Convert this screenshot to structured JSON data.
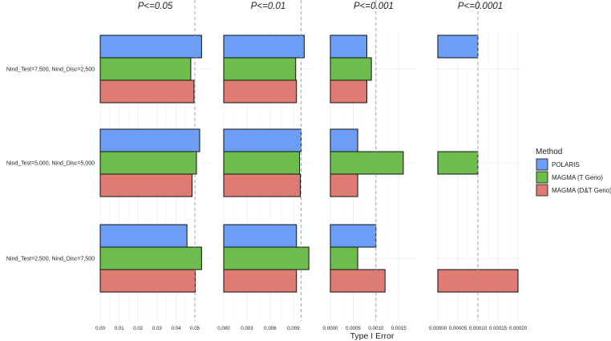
{
  "chart_data": {
    "type": "bar",
    "orientation": "horizontal",
    "xlabel": "Type I Error",
    "legend": {
      "title": "Method",
      "placement": "right",
      "entries": [
        {
          "name": "POLARIS",
          "color": "#6d9ef5"
        },
        {
          "name": "MAGMA (T Geno)",
          "color": "#6cbd4c"
        },
        {
          "name": "MAGMA (D&T Geno)",
          "color": "#e07b74"
        }
      ]
    },
    "rows": [
      "Nind_Test=7,500, Nind_Disc=2,500",
      "Nind_Test=5,000, Nind_Disc=5,000",
      "Nind_Test=2,500, Nind_Disc=7,500"
    ],
    "panels": [
      {
        "title": "P<=0.05",
        "threshold": 0.05,
        "xlim": [
          0,
          0.058
        ],
        "ticks": [
          0,
          0.01,
          0.02,
          0.03,
          0.04,
          0.05
        ],
        "tick_labels": [
          "0.00",
          "0.01",
          "0.02",
          "0.03",
          "0.04",
          "0.05"
        ],
        "series": [
          {
            "name": "POLARIS",
            "values": [
              0.0535,
              0.0525,
              0.0458
            ]
          },
          {
            "name": "MAGMA (T Geno)",
            "values": [
              0.0478,
              0.0508,
              0.0535
            ]
          },
          {
            "name": "MAGMA (D&T Geno)",
            "values": [
              0.0495,
              0.0485,
              0.0502
            ]
          }
        ]
      },
      {
        "title": "P<=0.01",
        "threshold": 0.01,
        "xlim": [
          0,
          0.0115
        ],
        "ticks": [
          0,
          0.003,
          0.006,
          0.009
        ],
        "tick_labels": [
          "0.000",
          "0.003",
          "0.006",
          "0.009"
        ],
        "series": [
          {
            "name": "POLARIS",
            "values": [
              0.0104,
              0.01,
              0.0094
            ]
          },
          {
            "name": "MAGMA (T Geno)",
            "values": [
              0.0093,
              0.0098,
              0.011
            ]
          },
          {
            "name": "MAGMA (D&T Geno)",
            "values": [
              0.0094,
              0.0099,
              0.0094
            ]
          }
        ]
      },
      {
        "title": "P<=0.001",
        "threshold": 0.001,
        "xlim": [
          0,
          0.0019
        ],
        "ticks": [
          0,
          0.0005,
          0.001,
          0.0015
        ],
        "tick_labels": [
          "0.0000",
          "0.0005",
          "0.0010",
          "0.0015"
        ],
        "series": [
          {
            "name": "POLARIS",
            "values": [
              0.0008,
              0.0006,
              0.001
            ]
          },
          {
            "name": "MAGMA (T Geno)",
            "values": [
              0.0009,
              0.0016,
              0.0006
            ]
          },
          {
            "name": "MAGMA (D&T Geno)",
            "values": [
              0.0008,
              0.0006,
              0.0012
            ]
          }
        ]
      },
      {
        "title": "P<=0.0001",
        "threshold": 0.0001,
        "xlim": [
          0,
          0.000212
        ],
        "ticks": [
          0,
          5e-05,
          0.0001,
          0.00015,
          0.0002
        ],
        "tick_labels": [
          "0.00000",
          "0.00005",
          "0.00010",
          "0.00015",
          "0.00020"
        ],
        "series": [
          {
            "name": "POLARIS",
            "values": [
              0.0001,
              0,
              0
            ]
          },
          {
            "name": "MAGMA (T Geno)",
            "values": [
              0,
              0.0001,
              0
            ]
          },
          {
            "name": "MAGMA (D&T Geno)",
            "values": [
              0,
              0,
              0.0002
            ]
          }
        ]
      }
    ]
  }
}
